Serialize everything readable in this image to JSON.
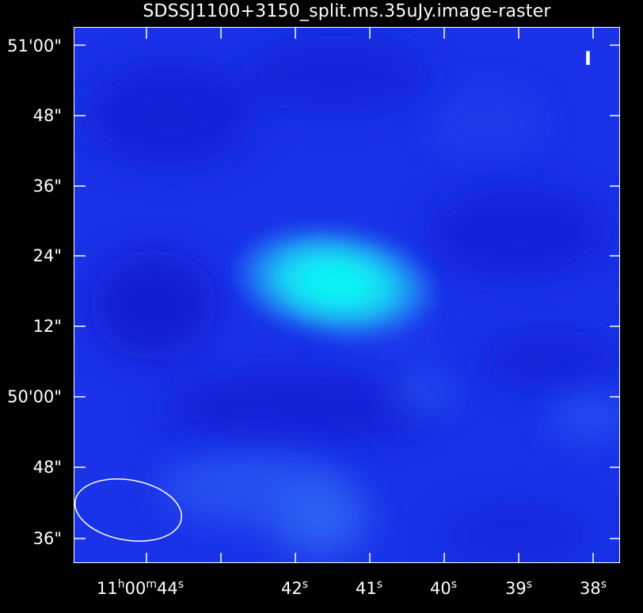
{
  "title": "SDSSJ1100+3150_split.ms.35uJy.image-raster",
  "stokes_label": "I",
  "y_tick_labels": [
    "51'00\"",
    "48\"",
    "36\"",
    "24\"",
    "12\"",
    "50'00\"",
    "48\"",
    "36\""
  ],
  "x_tick_labels": [
    {
      "main": "11",
      "h": "h",
      "mid": "00",
      "m": "m",
      "sec": "44",
      "s": "s"
    },
    {
      "main": "42",
      "s": "s"
    },
    {
      "main": "41",
      "s": "s"
    },
    {
      "main": "40",
      "s": "s"
    },
    {
      "main": "39",
      "s": "s"
    },
    {
      "main": "38",
      "s": "s"
    }
  ],
  "colors": {
    "background_blue": "#1a33e8",
    "peak_color": "#12f0f2",
    "frame": "#ffffff"
  },
  "beam_icon": "beam-ellipse"
}
